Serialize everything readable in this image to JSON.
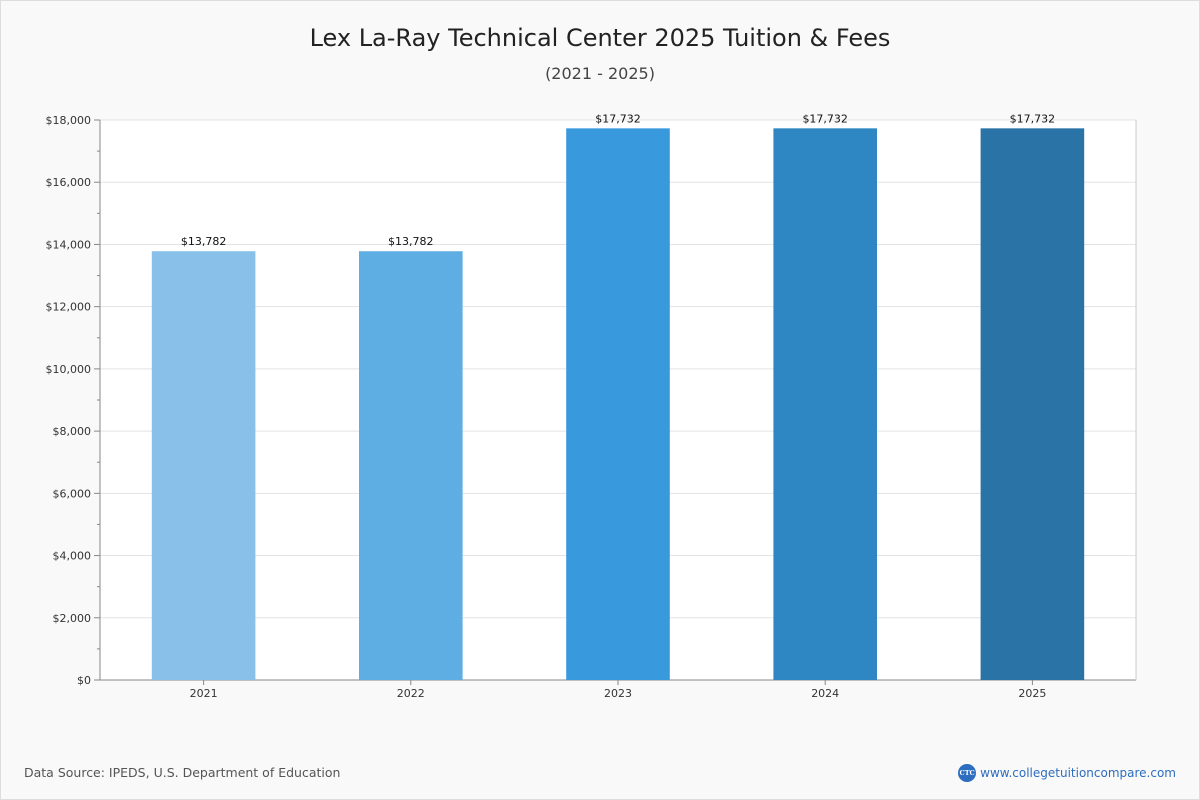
{
  "chart_data": {
    "type": "bar",
    "title": "Lex La-Ray Technical Center 2025 Tuition & Fees",
    "subtitle": "(2021 - 2025)",
    "categories": [
      "2021",
      "2022",
      "2023",
      "2024",
      "2025"
    ],
    "values": [
      13782,
      13782,
      17732,
      17732,
      17732
    ],
    "value_labels": [
      "$13,782",
      "$13,782",
      "$17,732",
      "$17,732",
      "$17,732"
    ],
    "bar_colors": [
      "#88c0e9",
      "#5eadE3",
      "#3899dc",
      "#2e87c2",
      "#2a73a6"
    ],
    "xlabel": "",
    "ylabel": "",
    "ylim": [
      0,
      18000
    ],
    "yticks": [
      0,
      2000,
      4000,
      6000,
      8000,
      10000,
      12000,
      14000,
      16000,
      18000
    ],
    "ytick_labels": [
      "$0",
      "$2,000",
      "$4,000",
      "$6,000",
      "$8,000",
      "$10,000",
      "$12,000",
      "$14,000",
      "$16,000",
      "$18,000"
    ],
    "grid": true,
    "legend": "none"
  },
  "footer": {
    "source": "Data Source: IPEDS, U.S. Department of Education",
    "logo_text": "CTC",
    "url": "www.collegetuitioncompare.com"
  }
}
